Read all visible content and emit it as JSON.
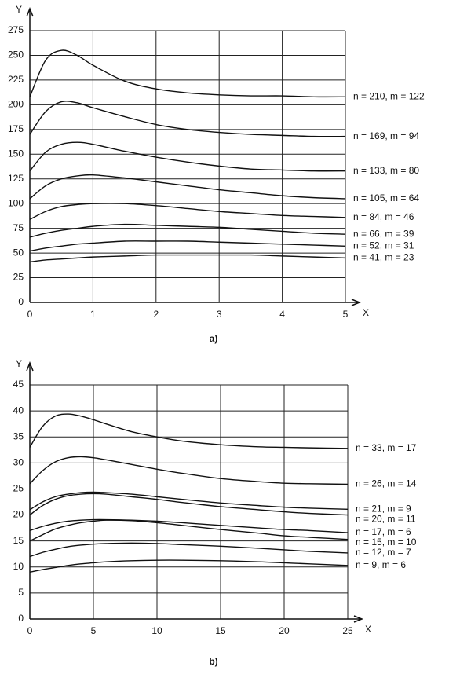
{
  "chart_data": [
    {
      "type": "line",
      "caption": "a)",
      "x_label": "X",
      "y_label": "Y",
      "x": [
        0,
        0.25,
        0.5,
        0.75,
        1,
        1.5,
        2,
        2.5,
        3,
        3.5,
        4,
        4.5,
        5
      ],
      "xlim": [
        0,
        5
      ],
      "xticks": [
        0,
        1,
        2,
        3,
        4,
        5
      ],
      "ylim": [
        0,
        275
      ],
      "yticks": [
        0,
        25,
        50,
        75,
        100,
        125,
        150,
        175,
        200,
        225,
        250,
        275
      ],
      "grid": true,
      "series": [
        {
          "name": "n = 210, m = 122",
          "color": "#111111",
          "values": [
            208,
            245,
            255,
            250,
            240,
            224,
            216,
            212,
            210,
            209,
            209,
            208,
            208
          ]
        },
        {
          "name": "n = 169, m = 94",
          "color": "#111111",
          "values": [
            170,
            193,
            203,
            202,
            197,
            188,
            180,
            175,
            172,
            170,
            169,
            168,
            168
          ]
        },
        {
          "name": "n = 133, m = 80",
          "color": "#111111",
          "values": [
            133,
            152,
            160,
            162,
            160,
            153,
            147,
            142,
            138,
            135,
            134,
            133,
            133
          ]
        },
        {
          "name": "n = 105, m = 64",
          "color": "#111111",
          "values": [
            105,
            118,
            125,
            128,
            129,
            126,
            122,
            118,
            114,
            111,
            108,
            106,
            105
          ]
        },
        {
          "name": "n = 84, m = 46",
          "color": "#111111",
          "values": [
            84,
            92,
            97,
            99,
            100,
            100,
            98,
            95,
            92,
            90,
            88,
            87,
            86
          ]
        },
        {
          "name": "n = 66, m = 39",
          "color": "#111111",
          "values": [
            66,
            70,
            73,
            75,
            77,
            79,
            78,
            77,
            76,
            74,
            72,
            70,
            69
          ]
        },
        {
          "name": "n = 52, m = 31",
          "color": "#111111",
          "values": [
            52,
            55,
            57,
            59,
            60,
            62,
            62,
            62,
            61,
            60,
            59,
            58,
            57
          ]
        },
        {
          "name": "n = 41, m = 23",
          "color": "#111111",
          "values": [
            41,
            43,
            44,
            45,
            46,
            47,
            48,
            48,
            48,
            48,
            47,
            46,
            45
          ]
        }
      ]
    },
    {
      "type": "line",
      "caption": "b)",
      "x_label": "X",
      "y_label": "Y",
      "x": [
        0,
        1,
        2,
        3,
        4,
        5,
        6,
        8,
        10,
        12,
        15,
        18,
        20,
        22,
        25
      ],
      "xlim": [
        0,
        25
      ],
      "xticks": [
        0,
        5,
        10,
        15,
        20,
        25
      ],
      "ylim": [
        0,
        45
      ],
      "yticks": [
        0,
        5,
        10,
        15,
        20,
        25,
        30,
        35,
        40,
        45
      ],
      "grid": true,
      "series": [
        {
          "name": "n = 33, m = 17",
          "color": "#111111",
          "values": [
            33,
            37,
            39,
            39.4,
            39,
            38.3,
            37.5,
            36,
            35,
            34.2,
            33.5,
            33.1,
            33,
            32.9,
            32.8
          ]
        },
        {
          "name": "n = 26, m = 14",
          "color": "#111111",
          "values": [
            26,
            28.5,
            30.2,
            31,
            31.2,
            31,
            30.6,
            29.7,
            28.8,
            28,
            27,
            26.4,
            26.1,
            26,
            25.9
          ]
        },
        {
          "name": "n = 21, m = 9",
          "color": "#111111",
          "values": [
            21,
            22.5,
            23.5,
            24,
            24.3,
            24.4,
            24.3,
            24,
            23.5,
            23,
            22.3,
            21.8,
            21.5,
            21.3,
            21.1
          ]
        },
        {
          "name": "n = 20, m = 11",
          "color": "#111111",
          "values": [
            20,
            21.8,
            23,
            23.7,
            24,
            24.1,
            24,
            23.5,
            23,
            22.4,
            21.6,
            21,
            20.6,
            20.3,
            20
          ]
        },
        {
          "name": "n = 17, m = 6",
          "color": "#111111",
          "values": [
            17,
            17.8,
            18.4,
            18.8,
            19,
            19.1,
            19.1,
            19,
            18.8,
            18.5,
            18,
            17.5,
            17.2,
            17,
            16.6
          ]
        },
        {
          "name": "n = 15, m = 10",
          "color": "#111111",
          "values": [
            15,
            16.2,
            17.3,
            18,
            18.5,
            18.8,
            19,
            18.9,
            18.5,
            18,
            17.2,
            16.5,
            16,
            15.7,
            15.3
          ]
        },
        {
          "name": "n = 12, m = 7",
          "color": "#111111",
          "values": [
            12,
            12.8,
            13.4,
            13.9,
            14.2,
            14.4,
            14.5,
            14.6,
            14.5,
            14.3,
            14,
            13.6,
            13.3,
            13,
            12.7
          ]
        },
        {
          "name": "n = 9, m = 6",
          "color": "#111111",
          "values": [
            9,
            9.5,
            9.9,
            10.3,
            10.6,
            10.8,
            11,
            11.2,
            11.3,
            11.3,
            11.2,
            11,
            10.8,
            10.6,
            10.3
          ]
        }
      ]
    }
  ]
}
